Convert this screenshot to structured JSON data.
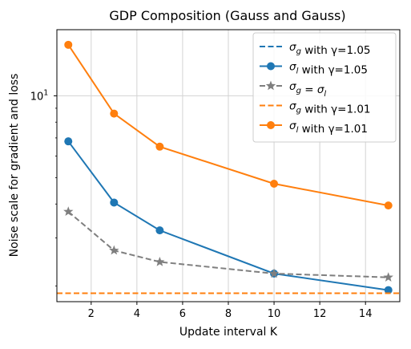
{
  "chart_data": {
    "type": "line",
    "title": "GDP Composition (Gauss and Gauss)",
    "xlabel": "Update interval K",
    "ylabel": "Noise scale for gradient and loss",
    "yscale": "log",
    "xlim": [
      0.5,
      15.5
    ],
    "ylim": [
      1.75,
      17.5
    ],
    "x_ticks": [
      2,
      4,
      6,
      8,
      10,
      12,
      14
    ],
    "y_ticks": [
      10
    ],
    "y_tick_labels": [
      "10^1"
    ],
    "grid": true,
    "legend_position": "top-right",
    "series": [
      {
        "name": "σ_g with γ=1.05",
        "style": "dashed",
        "marker": "none",
        "color": "#1f77b4",
        "x": [
          0.5,
          15.5
        ],
        "values": [
          1.88,
          1.88
        ]
      },
      {
        "name": "σ_l with γ=1.05",
        "style": "solid",
        "marker": "circle",
        "color": "#1f77b4",
        "x": [
          1,
          3,
          5,
          10,
          15
        ],
        "values": [
          6.8,
          4.05,
          3.2,
          2.22,
          1.93
        ]
      },
      {
        "name": "σ_g = σ_l",
        "style": "dashed",
        "marker": "star",
        "color": "#7f7f7f",
        "x": [
          1,
          3,
          5,
          10,
          15
        ],
        "values": [
          3.75,
          2.7,
          2.45,
          2.22,
          2.15
        ]
      },
      {
        "name": "σ_g with γ=1.01",
        "style": "dashed",
        "marker": "none",
        "color": "#ff7f0e",
        "x": [
          0.5,
          15.5
        ],
        "values": [
          1.88,
          1.88
        ]
      },
      {
        "name": "σ_l with γ=1.01",
        "style": "solid",
        "marker": "circle",
        "color": "#ff7f0e",
        "x": [
          1,
          3,
          5,
          10,
          15
        ],
        "values": [
          15.4,
          8.6,
          6.5,
          4.75,
          3.95
        ]
      }
    ]
  }
}
